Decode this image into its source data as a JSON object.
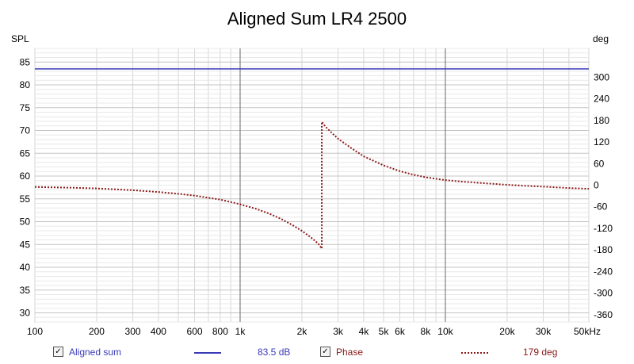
{
  "chart_data": {
    "type": "line",
    "title": "Aligned Sum LR4 2500",
    "left_axis_label": "SPL",
    "right_axis_label": "deg",
    "x_scale": "log",
    "xlim": [
      100,
      50000
    ],
    "ylim_left": [
      28,
      88
    ],
    "ylim_right": [
      -380,
      380
    ],
    "x_ticks": [
      {
        "v": 100,
        "label": "100"
      },
      {
        "v": 200,
        "label": "200"
      },
      {
        "v": 300,
        "label": "300"
      },
      {
        "v": 400,
        "label": "400"
      },
      {
        "v": 600,
        "label": "600"
      },
      {
        "v": 800,
        "label": "800"
      },
      {
        "v": 1000,
        "label": "1k"
      },
      {
        "v": 2000,
        "label": "2k"
      },
      {
        "v": 3000,
        "label": "3k"
      },
      {
        "v": 4000,
        "label": "4k"
      },
      {
        "v": 5000,
        "label": "5k"
      },
      {
        "v": 6000,
        "label": "6k"
      },
      {
        "v": 8000,
        "label": "8k"
      },
      {
        "v": 10000,
        "label": "10k"
      },
      {
        "v": 20000,
        "label": "20k"
      },
      {
        "v": 30000,
        "label": "30k"
      },
      {
        "v": 50000,
        "label": "50kHz"
      }
    ],
    "y_ticks_left": [
      30,
      35,
      40,
      45,
      50,
      55,
      60,
      65,
      70,
      75,
      80,
      85
    ],
    "y_ticks_right": [
      -360,
      -300,
      -240,
      -180,
      -120,
      -60,
      0,
      60,
      120,
      180,
      240,
      300
    ],
    "grid": true,
    "series": [
      {
        "name": "Aligned sum",
        "axis": "left",
        "color": "#3a3ab8",
        "style": "solid",
        "x": [
          100,
          50000
        ],
        "y": [
          83.5,
          83.5
        ]
      },
      {
        "name": "Phase",
        "axis": "right",
        "color": "#8b1a1a",
        "style": "dotted",
        "x": [
          100,
          150,
          200,
          300,
          400,
          500,
          600,
          700,
          800,
          1000,
          1200,
          1400,
          1600,
          1800,
          2000,
          2200,
          2400,
          2500,
          2500,
          2600,
          2800,
          3000,
          3500,
          4000,
          5000,
          6000,
          7000,
          8000,
          10000,
          12000,
          15000,
          20000,
          25000,
          30000,
          40000,
          50000
        ],
        "y": [
          -5,
          -7,
          -9,
          -14,
          -19,
          -24,
          -29,
          -35,
          -40,
          -53,
          -66,
          -80,
          -95,
          -111,
          -127,
          -144,
          -162,
          -176,
          176,
          163,
          145,
          129,
          102,
          80,
          55,
          39,
          29,
          22,
          14,
          10,
          6,
          1,
          -2,
          -4,
          -8,
          -10
        ]
      }
    ]
  },
  "legend": {
    "items": [
      {
        "label": "Aligned sum",
        "checked": "✓",
        "value": "83.5 dB",
        "color": "#3a3ab8"
      },
      {
        "label": "Phase",
        "checked": "✓",
        "value": "179 deg",
        "color": "#8b1a1a"
      }
    ]
  }
}
